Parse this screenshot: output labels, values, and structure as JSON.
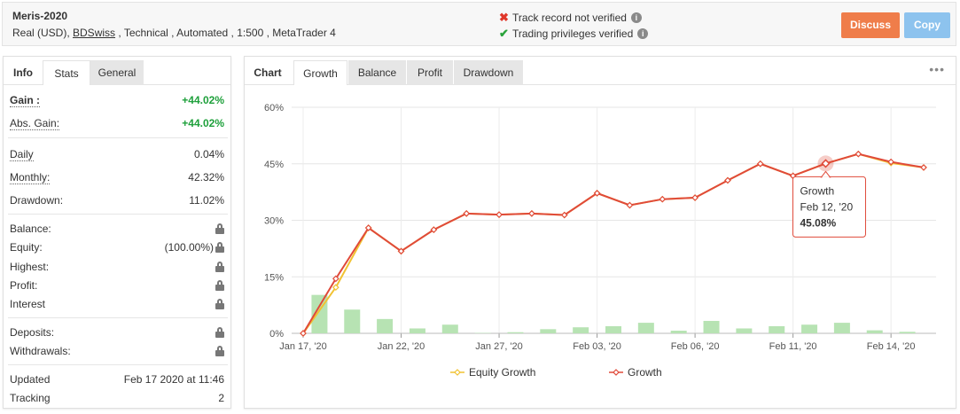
{
  "header": {
    "system_name": "Meris-2020",
    "meta_prefix": "Real (USD), ",
    "broker": "BDSwiss",
    "meta_suffix": " , Technical , Automated , 1:500 , MetaTrader 4",
    "track_record": "Track record not verified",
    "trading_privileges": "Trading privileges verified",
    "discuss_label": "Discuss",
    "copy_label": "Copy"
  },
  "left_tabs": {
    "info": "Info",
    "stats": "Stats",
    "general": "General"
  },
  "stats": {
    "gain_label": "Gain :",
    "gain_value": "+44.02%",
    "abs_gain_label": "Abs. Gain:",
    "abs_gain_value": "+44.02%",
    "daily_label": "Daily",
    "daily_value": "0.04%",
    "monthly_label": "Monthly:",
    "monthly_value": "42.32%",
    "drawdown_label": "Drawdown:",
    "drawdown_value": "11.02%",
    "balance_label": "Balance:",
    "equity_label": "Equity:",
    "equity_value": "(100.00%)",
    "highest_label": "Highest:",
    "profit_label": "Profit:",
    "interest_label": "Interest",
    "deposits_label": "Deposits:",
    "withdrawals_label": "Withdrawals:",
    "updated_label": "Updated",
    "updated_value": "Feb 17 2020 at 11:46",
    "tracking_label": "Tracking",
    "tracking_value": "2"
  },
  "right_tabs": {
    "chart": "Chart",
    "growth": "Growth",
    "balance": "Balance",
    "profit": "Profit",
    "drawdown": "Drawdown"
  },
  "colors": {
    "growth": "#e04a3a",
    "equity": "#f1c232",
    "bars": "#b7e3b3",
    "discuss": "#ef7d4a",
    "copy": "#8dc3ee"
  },
  "tooltip": {
    "title": "Growth",
    "date": "Feb 12, '20",
    "value": "45.08%"
  },
  "chart_data": {
    "type": "line",
    "ylim": [
      0,
      60
    ],
    "y_ticks": [
      "0%",
      "15%",
      "30%",
      "45%",
      "60%"
    ],
    "x_tick_labels": [
      "Jan 17, '20",
      "Jan 22, '20",
      "Jan 27, '20",
      "Feb 03, '20",
      "Feb 06, '20",
      "Feb 11, '20",
      "Feb 14, '20"
    ],
    "x_tick_index": [
      0,
      3,
      6,
      9,
      12,
      15,
      18
    ],
    "grid": true,
    "legend": [
      "Equity Growth",
      "Growth"
    ],
    "series": [
      {
        "name": "Growth",
        "values": [
          0,
          14.5,
          28,
          21.8,
          27.5,
          31.8,
          31.5,
          31.8,
          31.4,
          37.2,
          34,
          35.6,
          36,
          40.6,
          45,
          41.8,
          45.08,
          47.6,
          45.5,
          44.02
        ]
      },
      {
        "name": "Equity Growth",
        "values": [
          0,
          12.2,
          28,
          21.8,
          27.5,
          31.8,
          31.5,
          31.8,
          31.4,
          37.2,
          34,
          35.6,
          36,
          40.6,
          45,
          41.8,
          45.08,
          47.6,
          45.2,
          44.02
        ]
      }
    ],
    "bars": [
      10.2,
      6.3,
      3.8,
      1.3,
      2.3,
      0.1,
      0.3,
      1.1,
      1.6,
      1.9,
      2.8,
      0.7,
      3.3,
      1.3,
      1.9,
      2.3,
      2.8,
      0.8,
      0.4
    ],
    "highlight_index": 16
  }
}
